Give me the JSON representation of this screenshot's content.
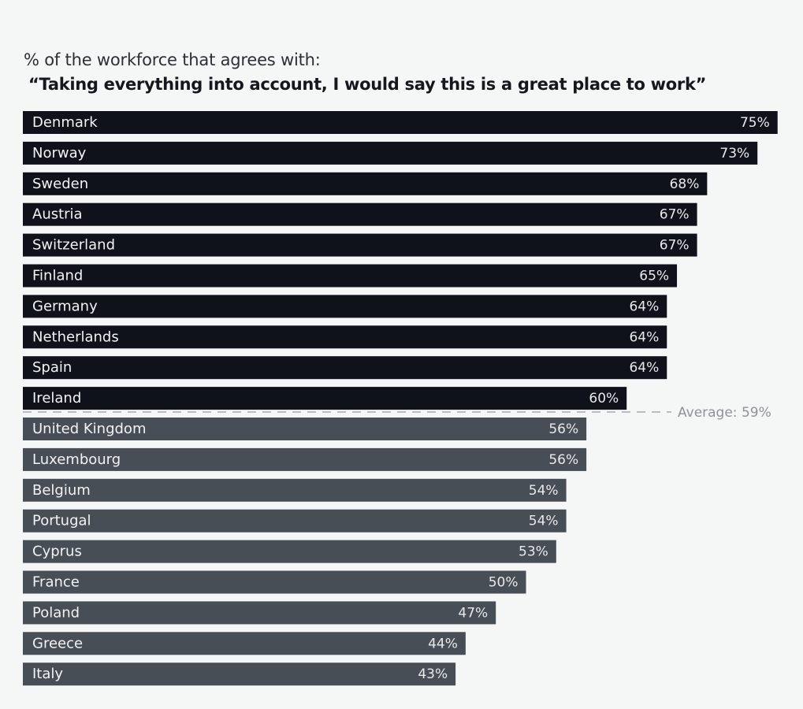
{
  "chart_data": {
    "type": "bar",
    "orientation": "horizontal",
    "subtitle": "% of the workforce that agrees with:",
    "title": "“Taking everything into account, I would say this is a great place to work”",
    "categories": [
      "Denmark",
      "Norway",
      "Sweden",
      "Austria",
      "Switzerland",
      "Finland",
      "Germany",
      "Netherlands",
      "Spain",
      "Ireland",
      "United Kingdom",
      "Luxembourg",
      "Belgium",
      "Portugal",
      "Cyprus",
      "France",
      "Poland",
      "Greece",
      "Italy"
    ],
    "values": [
      75,
      73,
      68,
      67,
      67,
      65,
      64,
      64,
      64,
      60,
      56,
      56,
      54,
      54,
      53,
      50,
      47,
      44,
      43
    ],
    "value_labels": [
      "75%",
      "73%",
      "68%",
      "67%",
      "67%",
      "65%",
      "64%",
      "64%",
      "64%",
      "60%",
      "56%",
      "56%",
      "54%",
      "54%",
      "53%",
      "50%",
      "47%",
      "44%",
      "43%"
    ],
    "average": {
      "value": 59,
      "label": "Average: 59%"
    },
    "xlim": [
      0,
      75
    ],
    "grid": false,
    "colors": {
      "above_average": "#0f121b",
      "below_average": "#484e56",
      "average_line": "#b9bdc1"
    }
  }
}
